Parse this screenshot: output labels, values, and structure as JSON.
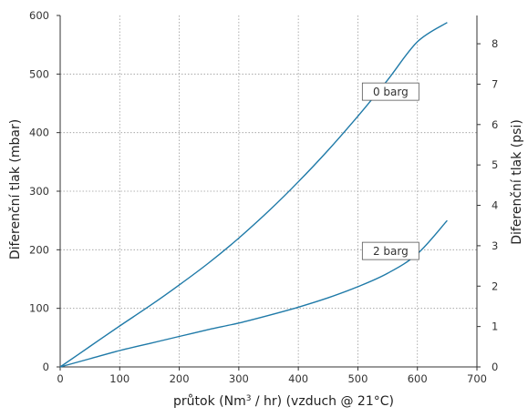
{
  "chart_data": {
    "type": "line",
    "xlabel": "průtok (Nm",
    "xlabel_sup": "3",
    "xlabel_rest": " / hr) (vzduch @ 21°C)",
    "ylabel": "Diferenční tlak (mbar)",
    "y2label": "Diferenční tlak (psi)",
    "xlim": [
      0,
      700
    ],
    "ylim": [
      0,
      600
    ],
    "y2lim": [
      0,
      8.7
    ],
    "x_ticks": [
      0,
      100,
      200,
      300,
      400,
      500,
      600,
      700
    ],
    "y_ticks": [
      0,
      100,
      200,
      300,
      400,
      500,
      600
    ],
    "y2_ticks": [
      0,
      1,
      2,
      3,
      4,
      5,
      6,
      7,
      8
    ],
    "grid": "dotted",
    "colors": {
      "line": "#1f7aa8",
      "axis": "#333333",
      "grid": "#9a9a9a",
      "label_border": "#555555"
    },
    "series": [
      {
        "name": "0 barg",
        "x": [
          0,
          50,
          100,
          150,
          200,
          250,
          300,
          350,
          400,
          450,
          500,
          550,
          600,
          650
        ],
        "y": [
          0,
          35,
          70,
          104,
          140,
          178,
          220,
          266,
          316,
          370,
          428,
          490,
          555,
          588
        ]
      },
      {
        "name": "2 barg",
        "x": [
          0,
          50,
          100,
          150,
          200,
          250,
          300,
          350,
          400,
          450,
          500,
          550,
          600,
          650
        ],
        "y": [
          0,
          14,
          28,
          40,
          52,
          64,
          75,
          88,
          102,
          118,
          137,
          160,
          193,
          250
        ]
      }
    ],
    "series_label_anchor": [
      {
        "x": 555,
        "y": 470
      },
      {
        "x": 555,
        "y": 198
      }
    ]
  }
}
